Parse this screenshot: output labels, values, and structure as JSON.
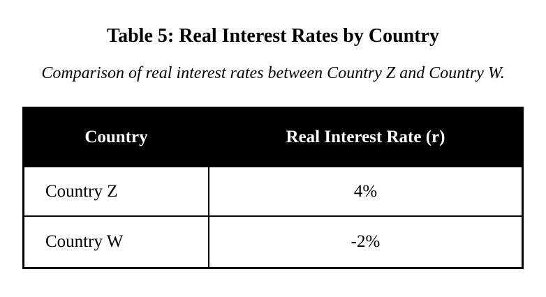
{
  "page": {
    "title": "Table 5: Real Interest Rates by Country",
    "subtitle": "Comparison of real interest rates between Country Z and Country W."
  },
  "table": {
    "columns": [
      "Country",
      "Real Interest Rate (r)"
    ],
    "rows": [
      [
        "Country Z",
        "4%"
      ],
      [
        "Country W",
        "-2%"
      ]
    ]
  },
  "colors": {
    "background": "#ffffff",
    "header_bg": "#000000",
    "header_text": "#ffffff",
    "body_text": "#000000",
    "border": "#000000"
  },
  "chart_data": {
    "type": "table",
    "title": "Table 5: Real Interest Rates by Country",
    "subtitle": "Comparison of real interest rates between Country Z and Country W.",
    "columns": [
      "Country",
      "Real Interest Rate (r)"
    ],
    "rows": [
      [
        "Country Z",
        "4%"
      ],
      [
        "Country W",
        "-2%"
      ]
    ]
  }
}
